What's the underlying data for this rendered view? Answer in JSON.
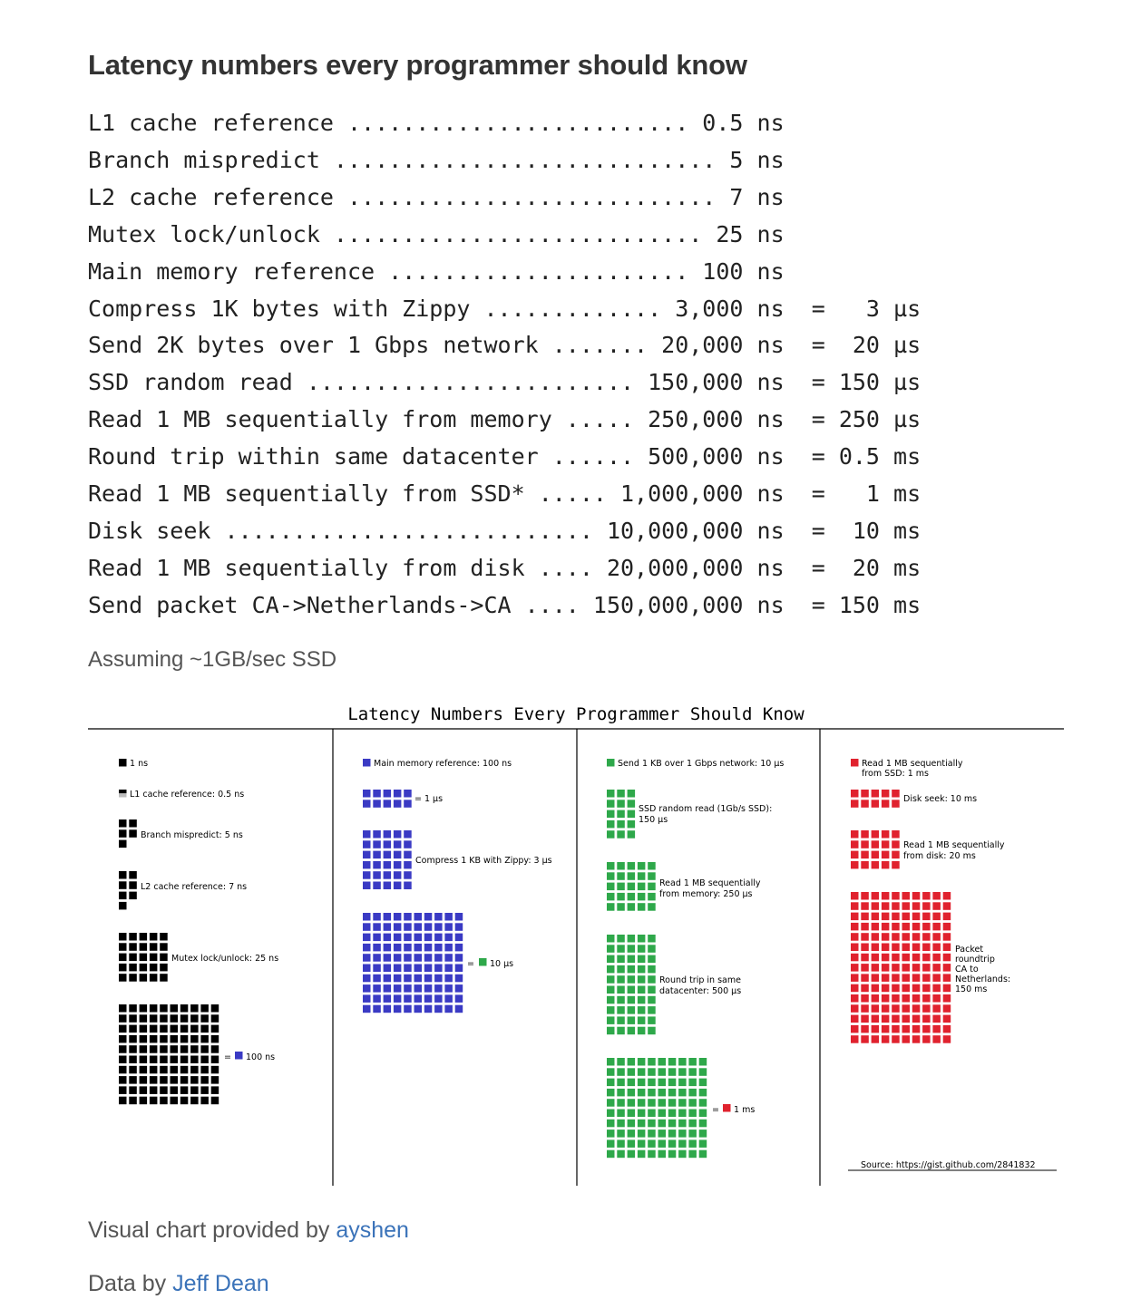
{
  "heading": "Latency numbers every programmer should know",
  "latency_lines": [
    "L1 cache reference ......................... 0.5 ns",
    "Branch mispredict ............................ 5 ns",
    "L2 cache reference ........................... 7 ns",
    "Mutex lock/unlock ........................... 25 ns",
    "Main memory reference ...................... 100 ns",
    "Compress 1K bytes with Zippy ............. 3,000 ns  =   3 µs",
    "Send 2K bytes over 1 Gbps network ....... 20,000 ns  =  20 µs",
    "SSD random read ........................ 150,000 ns  = 150 µs",
    "Read 1 MB sequentially from memory ..... 250,000 ns  = 250 µs",
    "Round trip within same datacenter ...... 500,000 ns  = 0.5 ms",
    "Read 1 MB sequentially from SSD* ..... 1,000,000 ns  =   1 ms",
    "Disk seek ........................... 10,000,000 ns  =  10 ms",
    "Read 1 MB sequentially from disk .... 20,000,000 ns  =  20 ms",
    "Send packet CA->Netherlands->CA .... 150,000,000 ns  = 150 ms"
  ],
  "footnote": "Assuming ~1GB/sec SSD",
  "figure": {
    "title": "Latency Numbers Every Programmer Should Know",
    "source": "Source: https://gist.github.com/2841832",
    "colors": {
      "ns": "#000000",
      "us100ns": "#3a3ac4",
      "us": "#2ea84a",
      "ms": "#e0222e"
    },
    "col1": {
      "legend": "1 ns",
      "l1": "L1 cache reference: 0.5 ns",
      "branch": "Branch mispredict: 5 ns",
      "l2": "L2 cache reference: 7 ns",
      "mutex": "Mutex lock/unlock: 25 ns",
      "equals": "=",
      "equiv": "100 ns"
    },
    "col2": {
      "legend": "Main memory reference: 100 ns",
      "eq_us": "= 1 µs",
      "zippy": "Compress 1 KB with Zippy: 3 µs",
      "equals": "=",
      "equiv": "10 µs"
    },
    "col3": {
      "legend": "Send 1 KB over 1 Gbps network: 10 µs",
      "ssd_1": "SSD random read (1Gb/s SSD):",
      "ssd_2": "150 µs",
      "mem_1": "Read 1 MB sequentially",
      "mem_2": "from memory: 250 µs",
      "dc_1": "Round trip in same",
      "dc_2": "datacenter: 500 µs",
      "equals": "=",
      "equiv": "1 ms"
    },
    "col4": {
      "legend_1": "Read 1 MB sequentially",
      "legend_2": "from SSD: 1 ms",
      "seek": "Disk seek: 10 ms",
      "disk_1": "Read 1 MB sequentially",
      "disk_2": "from disk: 20 ms",
      "pkt_1": "Packet",
      "pkt_2": "roundtrip",
      "pkt_3": "CA to",
      "pkt_4": "Netherlands:",
      "pkt_5": "150 ms"
    }
  },
  "credits": {
    "chart_prefix": "Visual chart provided by ",
    "chart_author": "ayshen",
    "data_prefix": "Data by ",
    "data_author": "Jeff Dean"
  }
}
